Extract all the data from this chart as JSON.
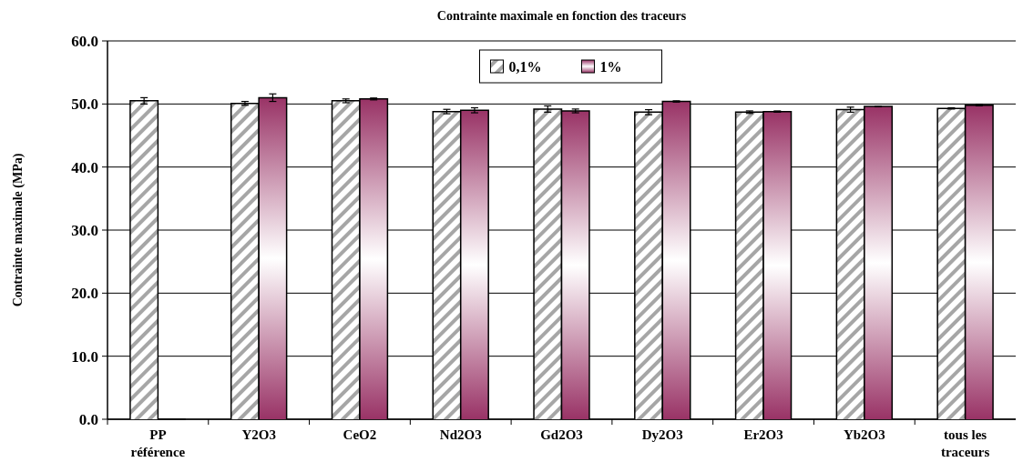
{
  "chart_data": {
    "type": "bar",
    "title": "Contrainte maximale en fonction des traceurs",
    "ylabel": "Contrainte maximale (MPa)",
    "categories": [
      "PP\nréférence",
      "Y2O3",
      "CeO2",
      "Nd2O3",
      "Gd2O3",
      "Dy2O3",
      "Er2O3",
      "Yb2O3",
      "tous les\ntraceurs"
    ],
    "series": [
      {
        "name": "0,1%",
        "color": "#a6a6a6",
        "values": [
          50.5,
          50.1,
          50.5,
          48.8,
          49.2,
          48.7,
          48.7,
          49.1,
          49.3
        ],
        "errors": [
          0.5,
          0.3,
          0.3,
          0.35,
          0.5,
          0.4,
          0.2,
          0.4,
          0.1
        ]
      },
      {
        "name": "1%",
        "color": "#993366",
        "values": [
          0,
          51.0,
          50.8,
          49.0,
          48.9,
          50.4,
          48.8,
          49.6,
          49.8
        ],
        "errors": [
          null,
          0.6,
          0.15,
          0.4,
          0.3,
          0.1,
          0.1,
          0.05,
          0.1
        ]
      }
    ],
    "ylim": [
      0,
      60
    ],
    "yticks": [
      {
        "value": 0,
        "label": "0.0"
      },
      {
        "value": 10,
        "label": "10.0"
      },
      {
        "value": 20,
        "label": "20.0"
      },
      {
        "value": 30,
        "label": "30.0"
      },
      {
        "value": 40,
        "label": "40.0"
      },
      {
        "value": 50,
        "label": "50.0"
      },
      {
        "value": 60,
        "label": "60.0"
      }
    ],
    "grid": "y",
    "legend": "top"
  }
}
